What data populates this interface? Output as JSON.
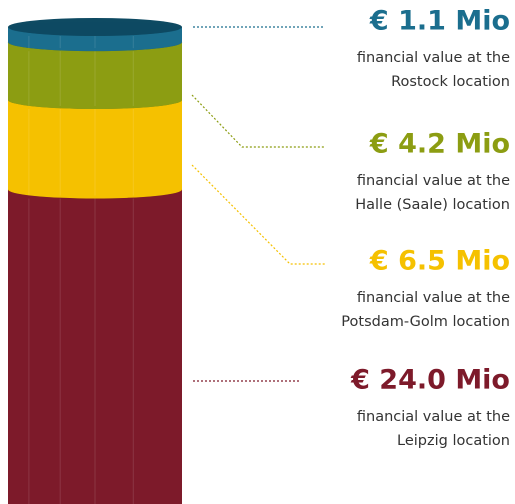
{
  "chart_data": {
    "type": "stacked-cylinder",
    "series": [
      {
        "name": "Rostock",
        "color": "#1b6e8e",
        "rim": "#0e4a62",
        "values": [
          1.1
        ],
        "value_labels": [
          "€ 1.1 Mio"
        ],
        "description": [
          "financial value at the",
          "Rostock location"
        ]
      },
      {
        "name": "Halle (Saale)",
        "color": "#8c9d12",
        "rim": "#5e6a0a",
        "values": [
          4.2
        ],
        "value_labels": [
          "€ 4.2 Mio"
        ],
        "description": [
          "financial value at the",
          "Halle (Saale) location"
        ]
      },
      {
        "name": "Potsdam-Golm",
        "color": "#f5c100",
        "rim": "#a07c00",
        "values": [
          6.5
        ],
        "value_labels": [
          "€ 6.5 Mio"
        ],
        "description": [
          "financial value at the",
          "Potsdam-Golm location"
        ]
      },
      {
        "name": "Leipzig",
        "color": "#7d1a2a",
        "rim": "#4e0f19",
        "values": [
          24.0
        ],
        "value_labels": [
          "€ 24.0 Mio"
        ],
        "description": [
          "financial value at the",
          "Leipzig location"
        ]
      }
    ]
  }
}
